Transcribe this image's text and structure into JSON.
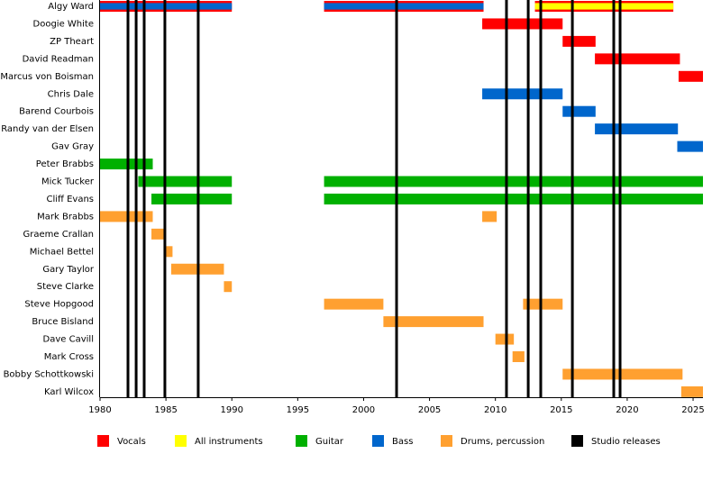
{
  "chart_data": {
    "type": "timeline",
    "xlim": [
      1980,
      2025.75
    ],
    "xticks": [
      1980,
      1985,
      1990,
      1995,
      2000,
      2005,
      2010,
      2015,
      2020,
      2025
    ],
    "series": [
      {
        "name": "Vocals",
        "color": "#ff0000"
      },
      {
        "name": "All instruments",
        "color": "#ffff00"
      },
      {
        "name": "Guitar",
        "color": "#00b000"
      },
      {
        "name": "Bass",
        "color": "#0066cc"
      },
      {
        "name": "Drums, percussion",
        "color": "#ffa030"
      },
      {
        "name": "Studio releases",
        "color": "#000000"
      }
    ],
    "rows": [
      {
        "name": "Algy Ward",
        "spans": [
          {
            "roles": [
              "Vocals",
              "Bass"
            ],
            "start": 1980,
            "end": 1990
          },
          {
            "roles": [
              "Vocals",
              "Bass"
            ],
            "start": 1997,
            "end": 2009.1
          },
          {
            "roles": [
              "Vocals",
              "All instruments"
            ],
            "start": 2013,
            "end": 2023.5
          }
        ]
      },
      {
        "name": "Doogie White",
        "spans": [
          {
            "roles": [
              "Vocals"
            ],
            "start": 2009,
            "end": 2015.1
          }
        ]
      },
      {
        "name": "ZP Theart",
        "spans": [
          {
            "roles": [
              "Vocals"
            ],
            "start": 2015.1,
            "end": 2017.6
          }
        ]
      },
      {
        "name": "David Readman",
        "spans": [
          {
            "roles": [
              "Vocals"
            ],
            "start": 2017.55,
            "end": 2024
          }
        ]
      },
      {
        "name": "Marcus von Boisman",
        "spans": [
          {
            "roles": [
              "Vocals"
            ],
            "start": 2023.9,
            "end": 2025.75
          }
        ]
      },
      {
        "name": "Chris Dale",
        "spans": [
          {
            "roles": [
              "Bass"
            ],
            "start": 2009,
            "end": 2015.1
          }
        ]
      },
      {
        "name": "Barend Courbois",
        "spans": [
          {
            "roles": [
              "Bass"
            ],
            "start": 2015.1,
            "end": 2017.6
          }
        ]
      },
      {
        "name": "Randy van der Elsen",
        "spans": [
          {
            "roles": [
              "Bass"
            ],
            "start": 2017.55,
            "end": 2023.85
          }
        ]
      },
      {
        "name": "Gav Gray",
        "spans": [
          {
            "roles": [
              "Bass"
            ],
            "start": 2023.8,
            "end": 2025.75
          }
        ]
      },
      {
        "name": "Peter Brabbs",
        "spans": [
          {
            "roles": [
              "Guitar"
            ],
            "start": 1980,
            "end": 1984
          }
        ]
      },
      {
        "name": "Mick Tucker",
        "spans": [
          {
            "roles": [
              "Guitar"
            ],
            "start": 1982.9,
            "end": 1990
          },
          {
            "roles": [
              "Guitar"
            ],
            "start": 1997,
            "end": 2025.75
          }
        ]
      },
      {
        "name": "Cliff Evans",
        "spans": [
          {
            "roles": [
              "Guitar"
            ],
            "start": 1983.9,
            "end": 1990
          },
          {
            "roles": [
              "Guitar"
            ],
            "start": 1997,
            "end": 2025.75
          }
        ]
      },
      {
        "name": "Mark Brabbs",
        "spans": [
          {
            "roles": [
              "Drums, percussion"
            ],
            "start": 1980,
            "end": 1984
          },
          {
            "roles": [
              "Drums, percussion"
            ],
            "start": 2009,
            "end": 2010.1
          }
        ]
      },
      {
        "name": "Graeme Crallan",
        "spans": [
          {
            "roles": [
              "Drums, percussion"
            ],
            "start": 1983.9,
            "end": 1985
          }
        ]
      },
      {
        "name": "Michael Bettel",
        "spans": [
          {
            "roles": [
              "Drums, percussion"
            ],
            "start": 1985,
            "end": 1985.5
          }
        ]
      },
      {
        "name": "Gary Taylor",
        "spans": [
          {
            "roles": [
              "Drums, percussion"
            ],
            "start": 1985.4,
            "end": 1989.4
          }
        ]
      },
      {
        "name": "Steve Clarke",
        "spans": [
          {
            "roles": [
              "Drums, percussion"
            ],
            "start": 1989.4,
            "end": 1990
          }
        ]
      },
      {
        "name": "Steve Hopgood",
        "spans": [
          {
            "roles": [
              "Drums, percussion"
            ],
            "start": 1997,
            "end": 2001.5
          },
          {
            "roles": [
              "Drums, percussion"
            ],
            "start": 2012.1,
            "end": 2015.1
          }
        ]
      },
      {
        "name": "Bruce Bisland",
        "spans": [
          {
            "roles": [
              "Drums, percussion"
            ],
            "start": 2001.5,
            "end": 2009.1
          }
        ]
      },
      {
        "name": "Dave Cavill",
        "spans": [
          {
            "roles": [
              "Drums, percussion"
            ],
            "start": 2010,
            "end": 2011.4
          }
        ]
      },
      {
        "name": "Mark Cross",
        "spans": [
          {
            "roles": [
              "Drums, percussion"
            ],
            "start": 2011.3,
            "end": 2012.2
          }
        ]
      },
      {
        "name": "Bobby Schottkowski",
        "spans": [
          {
            "roles": [
              "Drums, percussion"
            ],
            "start": 2015.1,
            "end": 2024.2
          }
        ]
      },
      {
        "name": "Karl Wilcox",
        "spans": [
          {
            "roles": [
              "Drums, percussion"
            ],
            "start": 2024.1,
            "end": 2025.75
          }
        ]
      }
    ],
    "releases": [
      1982.12,
      1982.74,
      1983.35,
      1984.92,
      1987.45,
      2002.5,
      2010.84,
      2012.49,
      2013.44,
      2015.84,
      2018.98,
      2019.46
    ]
  }
}
